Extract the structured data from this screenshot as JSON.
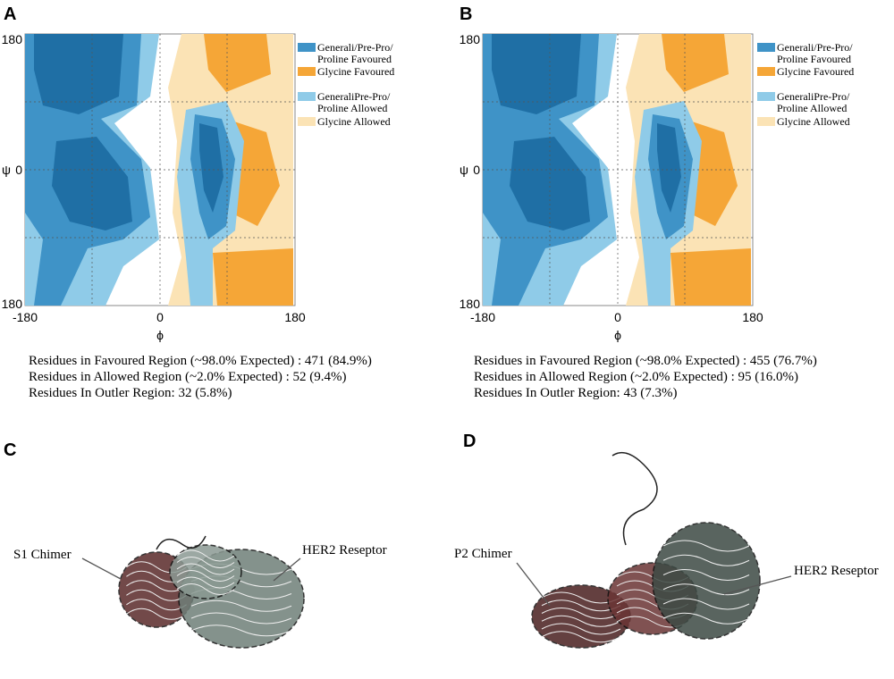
{
  "panels": [
    {
      "label": "A",
      "plot": {
        "x_axis_label": "ϕ",
        "y_axis_label": "ψ",
        "x_ticks": [
          "-180",
          "0",
          "180"
        ],
        "y_ticks": [
          "180",
          "0",
          "180"
        ]
      },
      "legend": [
        [
          "Generali/Pre-Pro/",
          "Proline Favoured"
        ],
        [
          "Glycine Favoured"
        ],
        [
          "GeneraliPre-Pro/",
          "Proline Allowed"
        ],
        [
          "Glycine Allowed"
        ]
      ],
      "stats": [
        "Residues in Favoured Region (~98.0% Expected) : 471 (84.9%)",
        "Residues in Allowed Region (~2.0% Expected) : 52 (9.4%)",
        "Residues In Outler Region: 32 (5.8%)"
      ]
    },
    {
      "label": "B",
      "plot": {
        "x_axis_label": "ϕ",
        "y_axis_label": "ψ",
        "x_ticks": [
          "-180",
          "0",
          "180"
        ],
        "y_ticks": [
          "180",
          "0",
          "180"
        ]
      },
      "legend": [
        [
          "Generali/Pre-Pro/",
          "Proline Favoured"
        ],
        [
          "Glycine Favoured"
        ],
        [
          "GeneraliPre-Pro/",
          "Proline Allowed"
        ],
        [
          "Glycine Allowed"
        ]
      ],
      "stats": [
        "Residues in Favoured Region (~98.0% Expected) : 455 (76.7%)",
        "Residues in Allowed Region (~2.0% Expected) : 95 (16.0%)",
        "Residues In Outler Region: 43 (7.3%)"
      ]
    }
  ],
  "structures": [
    {
      "label": "C",
      "chimer": "S1 Chimer",
      "receptor": "HER2 Reseptor"
    },
    {
      "label": "D",
      "chimer": "P2 Chimer",
      "receptor": "HER2 Reseptor"
    }
  ]
}
